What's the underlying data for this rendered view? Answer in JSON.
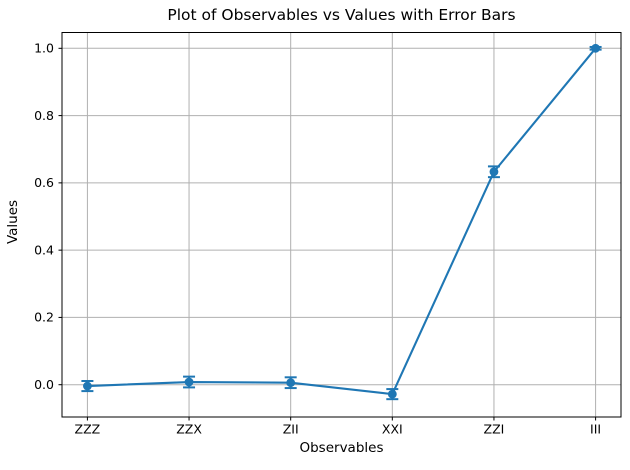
{
  "chart_data": {
    "type": "line",
    "title": "Plot of Observables vs Values with Error Bars",
    "xlabel": "Observables",
    "ylabel": "Values",
    "categories": [
      "ZZZ",
      "ZZX",
      "ZII",
      "XXI",
      "ZZI",
      "III"
    ],
    "series": [
      {
        "name": "values",
        "values": [
          -0.004,
          0.008,
          0.006,
          -0.028,
          0.633,
          1.0
        ],
        "errors": [
          0.015,
          0.016,
          0.016,
          0.015,
          0.016,
          0.004
        ]
      }
    ],
    "yticks": [
      0.0,
      0.2,
      0.4,
      0.6,
      0.8,
      1.0
    ],
    "ytick_labels": [
      "0.0",
      "0.2",
      "0.4",
      "0.6",
      "0.8",
      "1.0"
    ],
    "ylim": [
      -0.096,
      1.047
    ],
    "grid": true,
    "legend": false,
    "marker": "circle",
    "error_bar_caps": true,
    "colors": {
      "line": "#1f77b4",
      "grid": "#b0b0b0",
      "axes": "#000000",
      "text": "#000000",
      "background": "#ffffff"
    }
  }
}
